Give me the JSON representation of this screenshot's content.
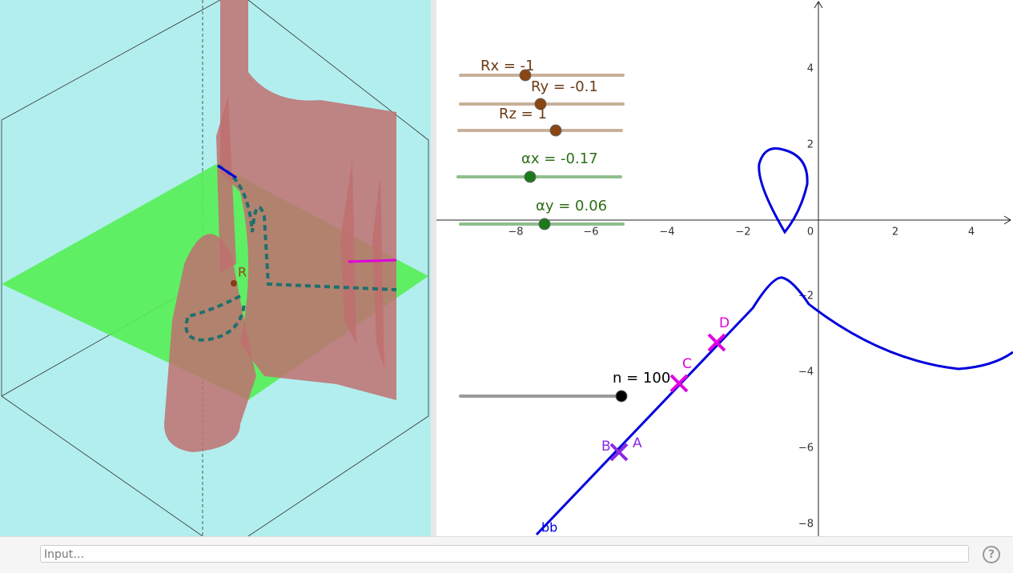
{
  "view_3d": {
    "point_label": "R"
  },
  "graphics_view": {
    "sliders": [
      {
        "label": "Rx = -1"
      },
      {
        "label": "Ry = -0.1"
      },
      {
        "label": "Rz = 1"
      },
      {
        "label": "αx = -0.17"
      },
      {
        "label": "αy = 0.06"
      },
      {
        "label": "n = 100"
      }
    ],
    "point_labels": [
      "A",
      "B",
      "C",
      "D"
    ],
    "curve_label": "bb",
    "x_ticks": [
      "−8",
      "−6",
      "−4",
      "−2",
      "0",
      "2",
      "4"
    ],
    "y_ticks": [
      "4",
      "2",
      "−2",
      "−4",
      "−6",
      "−8"
    ]
  },
  "input_bar": {
    "placeholder": "Input…",
    "help": "?"
  }
}
